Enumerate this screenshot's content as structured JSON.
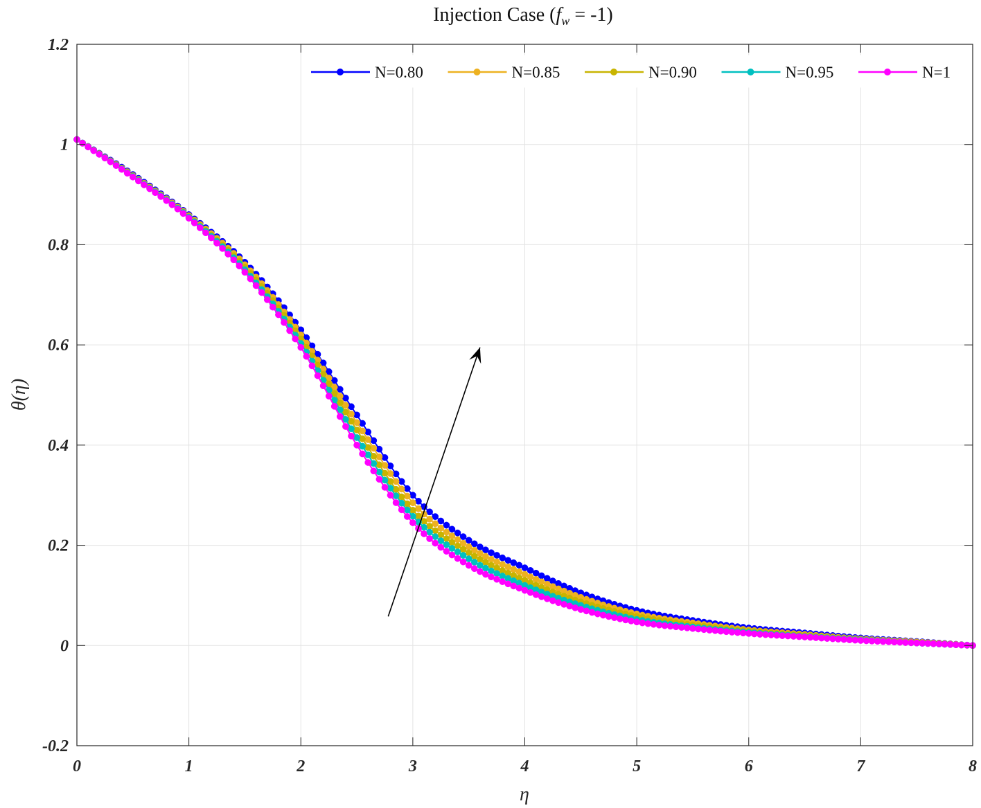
{
  "chart_data": {
    "type": "line",
    "title": "Injection Case (f_w = -1)",
    "title_parts": {
      "prefix": "Injection Case (",
      "symbol": "f",
      "subscript": "w",
      "suffix": " = -1)"
    },
    "xlabel": "η",
    "ylabel": "θ(η)",
    "xlim": [
      0,
      8
    ],
    "ylim": [
      -0.2,
      1.2
    ],
    "xticks": [
      0,
      1,
      2,
      3,
      4,
      5,
      6,
      7,
      8
    ],
    "xtick_labels": [
      "0",
      "1",
      "2",
      "3",
      "4",
      "5",
      "6",
      "7",
      "8"
    ],
    "yticks": [
      -0.2,
      0,
      0.2,
      0.4,
      0.6,
      0.8,
      1,
      1.2
    ],
    "ytick_labels": [
      "-0.2",
      "0",
      "0.2",
      "0.4",
      "0.6",
      "0.8",
      "1",
      "1.2"
    ],
    "grid": true,
    "legend_position": "top-right",
    "x": [
      0,
      0.5,
      1,
      1.5,
      2,
      2.5,
      3,
      3.5,
      4,
      4.5,
      5,
      5.5,
      6,
      6.5,
      7,
      7.5,
      8
    ],
    "series": [
      {
        "name": "N=0.80",
        "color": "#0000ff",
        "values": [
          1.01,
          0.94,
          0.86,
          0.765,
          0.63,
          0.46,
          0.3,
          0.21,
          0.155,
          0.105,
          0.07,
          0.05,
          0.035,
          0.025,
          0.015,
          0.008,
          0.0
        ]
      },
      {
        "name": "N=0.85",
        "color": "#edb120",
        "values": [
          1.01,
          0.938,
          0.858,
          0.76,
          0.62,
          0.445,
          0.285,
          0.197,
          0.142,
          0.096,
          0.063,
          0.045,
          0.031,
          0.022,
          0.013,
          0.007,
          0.0
        ]
      },
      {
        "name": "N=0.90",
        "color": "#c8b400",
        "values": [
          1.01,
          0.937,
          0.856,
          0.755,
          0.612,
          0.43,
          0.27,
          0.185,
          0.13,
          0.087,
          0.058,
          0.041,
          0.029,
          0.02,
          0.012,
          0.006,
          0.0
        ]
      },
      {
        "name": "N=0.95",
        "color": "#00c0c0",
        "values": [
          1.01,
          0.936,
          0.855,
          0.75,
          0.603,
          0.415,
          0.258,
          0.173,
          0.12,
          0.08,
          0.052,
          0.037,
          0.026,
          0.018,
          0.011,
          0.005,
          0.0
        ]
      },
      {
        "name": "N=1",
        "color": "#ff00ff",
        "values": [
          1.01,
          0.935,
          0.853,
          0.745,
          0.595,
          0.4,
          0.245,
          0.16,
          0.11,
          0.072,
          0.047,
          0.034,
          0.024,
          0.017,
          0.01,
          0.005,
          0.0
        ]
      }
    ],
    "annotation": {
      "type": "arrow",
      "from": [
        2.78,
        0.058
      ],
      "to": [
        3.6,
        0.595
      ]
    }
  }
}
